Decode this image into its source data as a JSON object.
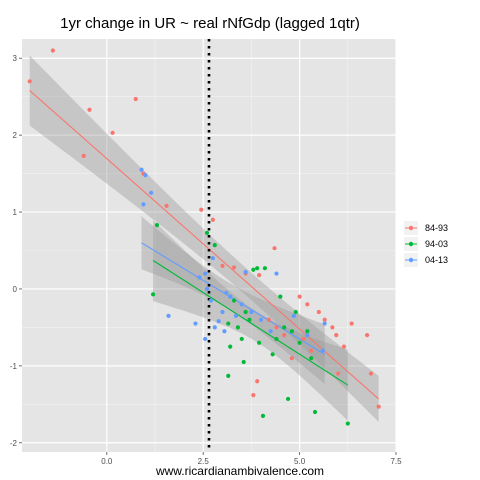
{
  "chart_data": {
    "type": "scatter",
    "title": "1yr change in UR ~ real rNfGdp (lagged 1qtr)",
    "xlabel": "www.ricardianambivalence.com",
    "ylabel": "",
    "xlim": [
      -2.2,
      7.5
    ],
    "ylim": [
      -2.12,
      3.25
    ],
    "x_ticks": [
      "0.0",
      "2.5",
      "5.0",
      "7.5"
    ],
    "x_tick_values": [
      0,
      2.5,
      5,
      7.5
    ],
    "y_ticks": [
      "-2",
      "-1",
      "0",
      "1",
      "2",
      "3"
    ],
    "y_tick_values": [
      -2,
      -1,
      0,
      1,
      2,
      3
    ],
    "grid": true,
    "legend_position": "right",
    "vline": {
      "x": 2.65,
      "style": "dotted"
    },
    "series": [
      {
        "name": "84-93",
        "color": "#F8766D",
        "points": [
          [
            -1.4,
            3.1
          ],
          [
            -2.0,
            2.7
          ],
          [
            -0.45,
            2.33
          ],
          [
            0.15,
            2.03
          ],
          [
            -0.6,
            1.73
          ],
          [
            0.75,
            2.47
          ],
          [
            0.95,
            1.5
          ],
          [
            1.55,
            1.08
          ],
          [
            2.45,
            1.03
          ],
          [
            2.75,
            0.9
          ],
          [
            3.0,
            0.3
          ],
          [
            3.3,
            0.28
          ],
          [
            3.6,
            0.2
          ],
          [
            3.95,
            0.18
          ],
          [
            4.35,
            0.53
          ],
          [
            5.0,
            -0.1
          ],
          [
            5.2,
            -0.2
          ],
          [
            5.5,
            -0.3
          ],
          [
            5.65,
            -0.4
          ],
          [
            5.85,
            -0.5
          ],
          [
            5.95,
            -0.6
          ],
          [
            6.15,
            -0.75
          ],
          [
            6.35,
            -0.45
          ],
          [
            6.75,
            -0.6
          ],
          [
            6.85,
            -1.1
          ],
          [
            7.05,
            -1.53
          ],
          [
            6.0,
            -1.1
          ],
          [
            5.1,
            -0.65
          ],
          [
            4.8,
            -0.9
          ],
          [
            4.2,
            -0.4
          ],
          [
            4.6,
            -0.6
          ],
          [
            3.8,
            -1.38
          ],
          [
            3.9,
            -1.2
          ],
          [
            4.4,
            -0.5
          ],
          [
            5.3,
            -0.8
          ]
        ]
      },
      {
        "name": "94-03",
        "color": "#00BA38",
        "points": [
          [
            1.2,
            -0.07
          ],
          [
            1.3,
            0.83
          ],
          [
            2.6,
            0.73
          ],
          [
            2.8,
            0.57
          ],
          [
            3.3,
            -0.15
          ],
          [
            3.15,
            -0.45
          ],
          [
            3.4,
            -0.5
          ],
          [
            3.5,
            -0.65
          ],
          [
            3.6,
            -0.3
          ],
          [
            3.7,
            -0.4
          ],
          [
            3.8,
            0.25
          ],
          [
            3.9,
            0.27
          ],
          [
            4.1,
            0.27
          ],
          [
            4.4,
            -0.65
          ],
          [
            4.6,
            -0.5
          ],
          [
            4.8,
            -0.55
          ],
          [
            5.0,
            -0.7
          ],
          [
            5.2,
            -0.55
          ],
          [
            4.9,
            -0.3
          ],
          [
            4.5,
            -0.1
          ],
          [
            3.15,
            -1.13
          ],
          [
            3.55,
            -0.95
          ],
          [
            4.05,
            -1.65
          ],
          [
            4.7,
            -1.43
          ],
          [
            5.4,
            -1.6
          ],
          [
            6.25,
            -1.75
          ],
          [
            3.2,
            -0.75
          ],
          [
            5.3,
            -0.9
          ],
          [
            4.3,
            -0.85
          ],
          [
            3.95,
            -0.7
          ]
        ]
      },
      {
        "name": "04-13",
        "color": "#619CFF",
        "points": [
          [
            0.9,
            1.55
          ],
          [
            1.0,
            1.48
          ],
          [
            0.95,
            1.1
          ],
          [
            1.15,
            1.25
          ],
          [
            1.6,
            -0.35
          ],
          [
            2.4,
            0.15
          ],
          [
            2.55,
            0.2
          ],
          [
            2.6,
            0.0
          ],
          [
            2.7,
            -0.15
          ],
          [
            2.8,
            -0.5
          ],
          [
            3.0,
            -0.3
          ],
          [
            3.1,
            -0.05
          ],
          [
            3.2,
            -0.1
          ],
          [
            3.5,
            -0.2
          ],
          [
            3.75,
            -0.3
          ],
          [
            4.0,
            -0.4
          ],
          [
            4.4,
            0.2
          ],
          [
            4.85,
            -0.35
          ],
          [
            5.2,
            -0.6
          ],
          [
            5.6,
            -0.8
          ],
          [
            5.65,
            -0.45
          ],
          [
            2.3,
            -0.45
          ],
          [
            3.05,
            -0.55
          ],
          [
            2.9,
            -0.42
          ],
          [
            3.35,
            -0.35
          ],
          [
            2.55,
            -0.65
          ],
          [
            4.25,
            -0.55
          ],
          [
            3.6,
            0.22
          ],
          [
            2.75,
            0.4
          ]
        ]
      }
    ],
    "fits": [
      {
        "series": "84-93",
        "x": [
          -2.0,
          7.05
        ],
        "y": [
          2.58,
          -1.43
        ]
      },
      {
        "series": "94-03",
        "x": [
          1.2,
          6.25
        ],
        "y": [
          0.37,
          -1.25
        ]
      },
      {
        "series": "04-13",
        "x": [
          0.9,
          5.65
        ],
        "y": [
          0.6,
          -0.85
        ]
      }
    ]
  }
}
